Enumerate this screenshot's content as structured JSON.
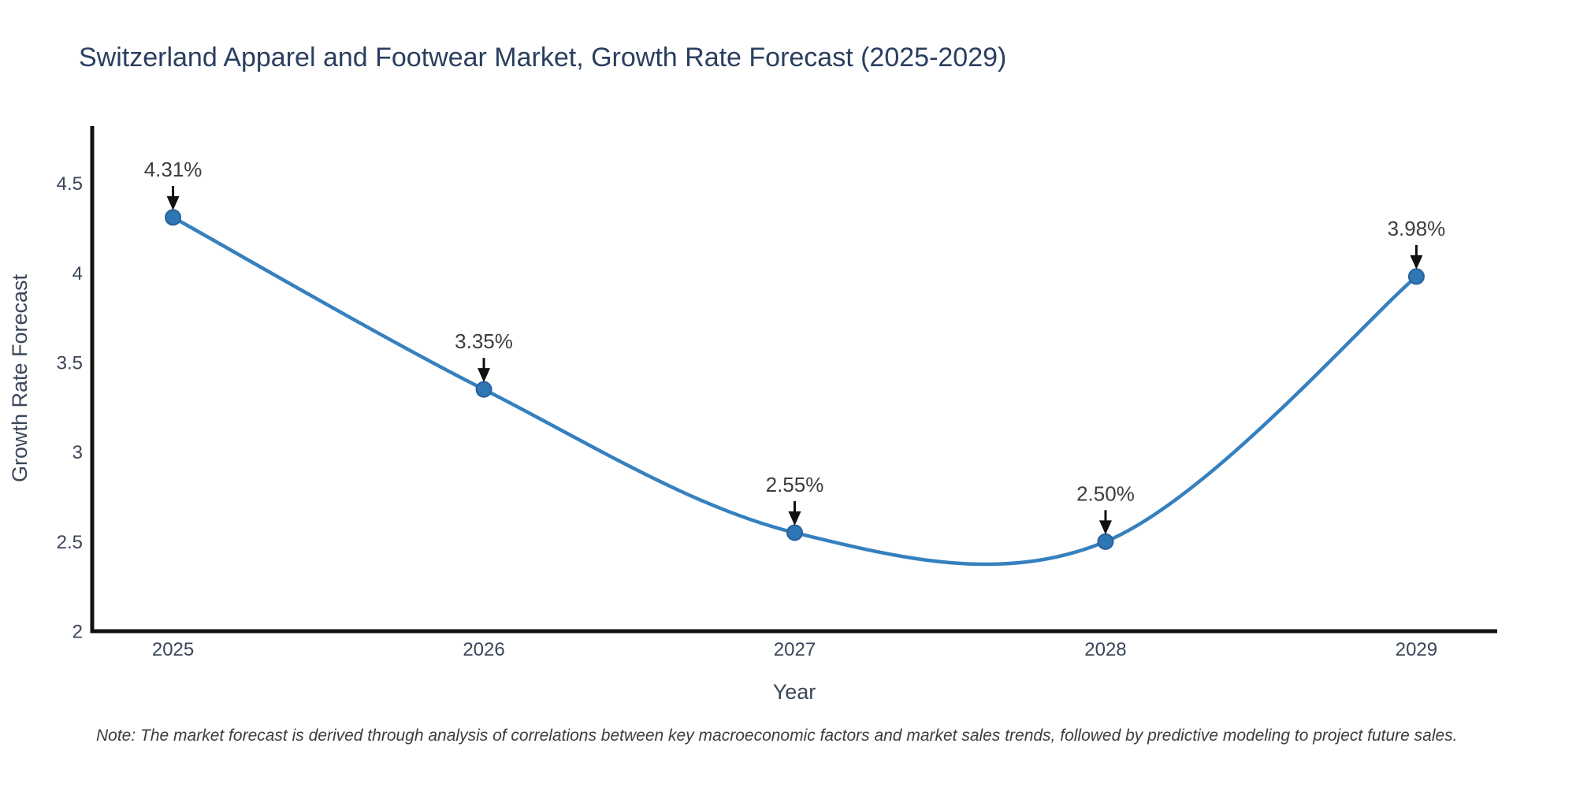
{
  "chart_data": {
    "type": "line",
    "title": "Switzerland Apparel and Footwear Market, Growth Rate Forecast (2025-2029)",
    "xlabel": "Year",
    "ylabel": "Growth Rate Forecast",
    "x": [
      2025,
      2026,
      2027,
      2028,
      2029
    ],
    "y": [
      4.31,
      3.35,
      2.55,
      2.5,
      3.98
    ],
    "series": [
      {
        "name": "Growth Rate Forecast",
        "values": [
          4.31,
          3.35,
          2.55,
          2.5,
          3.98
        ]
      }
    ],
    "point_labels": [
      "4.31%",
      "3.35%",
      "2.55%",
      "2.50%",
      "3.98%"
    ],
    "x_tick_labels": [
      "2025",
      "2026",
      "2027",
      "2028",
      "2029"
    ],
    "y_tick_values": [
      2,
      2.5,
      3,
      3.5,
      4,
      4.5
    ],
    "y_tick_labels": [
      "2",
      "2.5",
      "3",
      "3.5",
      "4",
      "4.5"
    ],
    "x_range": [
      2024.74,
      2029.26
    ],
    "y_range": [
      2.0,
      4.82
    ],
    "line_shape": "spline",
    "grid": false,
    "legend_position": "none",
    "annotation_style": "value label with down arrow to marker"
  },
  "note": {
    "text": "Note: The market forecast is derived through analysis of correlations between key macroeconomic factors and market sales trends, followed by predictive modeling to project future sales."
  },
  "colors": {
    "background": "#ffffff",
    "line": "#3580bf",
    "marker_fill": "#2f76b5",
    "marker_edge": "#26629c",
    "axis_line": "#111111",
    "arrow": "#111111",
    "title_text": "#2a3f5f",
    "axis_text": "#3b4659",
    "annotation_text": "#3d3d3d",
    "note_text": "#3d3d3d"
  }
}
